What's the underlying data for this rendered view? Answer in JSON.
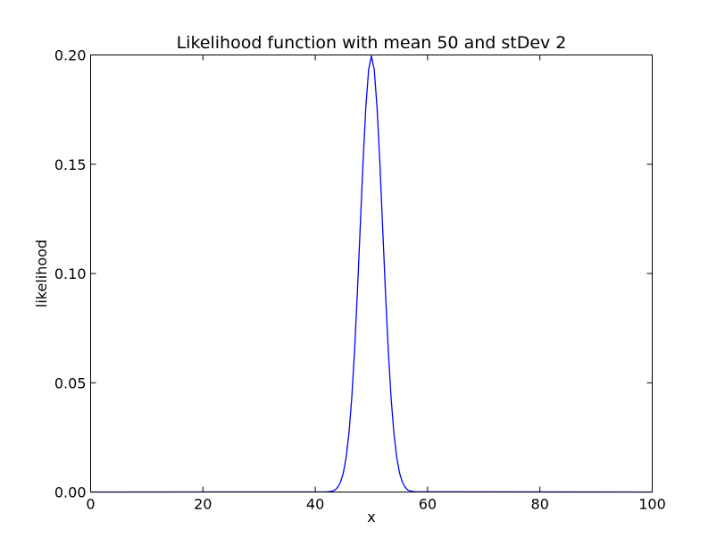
{
  "chart_data": {
    "type": "line",
    "title": "Likelihood function with mean 50 and stDev 2",
    "xlabel": "x",
    "ylabel": "likelihood",
    "xlim": [
      0,
      100
    ],
    "ylim": [
      0,
      0.2
    ],
    "x_ticks": [
      0,
      20,
      40,
      60,
      80,
      100
    ],
    "y_ticks": [
      0,
      0.05,
      0.1,
      0.15,
      0.2
    ],
    "x_tick_labels": [
      "0",
      "20",
      "40",
      "60",
      "80",
      "100"
    ],
    "y_tick_labels": [
      "0.00",
      "0.05",
      "0.10",
      "0.15",
      "0.20"
    ],
    "grid": false,
    "legend": false,
    "series": [
      {
        "color": "#0000ff",
        "x": [
          0,
          42,
          42.5,
          43,
          43.5,
          44,
          44.5,
          45,
          45.5,
          46,
          46.5,
          47,
          47.5,
          48,
          48.5,
          49,
          49.5,
          50,
          50.5,
          51,
          51.5,
          52,
          52.5,
          53,
          53.5,
          54,
          54.5,
          55,
          55.5,
          56,
          56.5,
          57,
          57.5,
          58,
          100
        ],
        "y": [
          0,
          0.0001,
          0.0002,
          0.0004,
          0.0009,
          0.0022,
          0.0046,
          0.0088,
          0.0159,
          0.027,
          0.0431,
          0.0648,
          0.0913,
          0.121,
          0.1506,
          0.176,
          0.1933,
          0.1995,
          0.1933,
          0.176,
          0.1506,
          0.121,
          0.0913,
          0.0648,
          0.0431,
          0.027,
          0.0159,
          0.0088,
          0.0046,
          0.0022,
          0.0009,
          0.0004,
          0.0002,
          0.0001,
          0
        ]
      }
    ]
  },
  "colors": {
    "background": "#ffffff",
    "axes": "#000000",
    "line": "#0000ff"
  }
}
